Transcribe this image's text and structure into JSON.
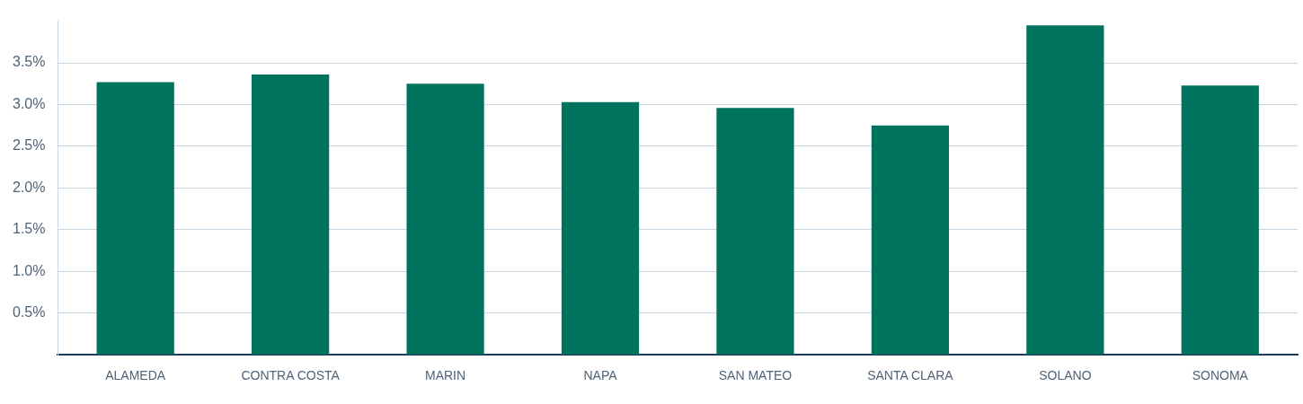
{
  "chart_data": {
    "type": "bar",
    "categories": [
      "ALAMEDA",
      "CONTRA COSTA",
      "MARIN",
      "NAPA",
      "SAN MATEO",
      "SANTA CLARA",
      "SOLANO",
      "SONOMA"
    ],
    "values": [
      3.27,
      3.36,
      3.25,
      3.03,
      2.96,
      2.75,
      3.95,
      3.23
    ],
    "color": "#00735f",
    "ylim": [
      0,
      4
    ],
    "yticks": [
      {
        "value": 0,
        "label": null
      },
      {
        "value": 0.5,
        "label": "0.5%"
      },
      {
        "value": 1,
        "label": "1.0%"
      },
      {
        "value": 1.5,
        "label": "1.5%"
      },
      {
        "value": 2,
        "label": "2.0%"
      },
      {
        "value": 2.5,
        "label": "2.5%"
      },
      {
        "value": 3,
        "label": "3.0%"
      },
      {
        "value": 3.5,
        "label": "3.5%"
      }
    ],
    "grid": "y"
  }
}
